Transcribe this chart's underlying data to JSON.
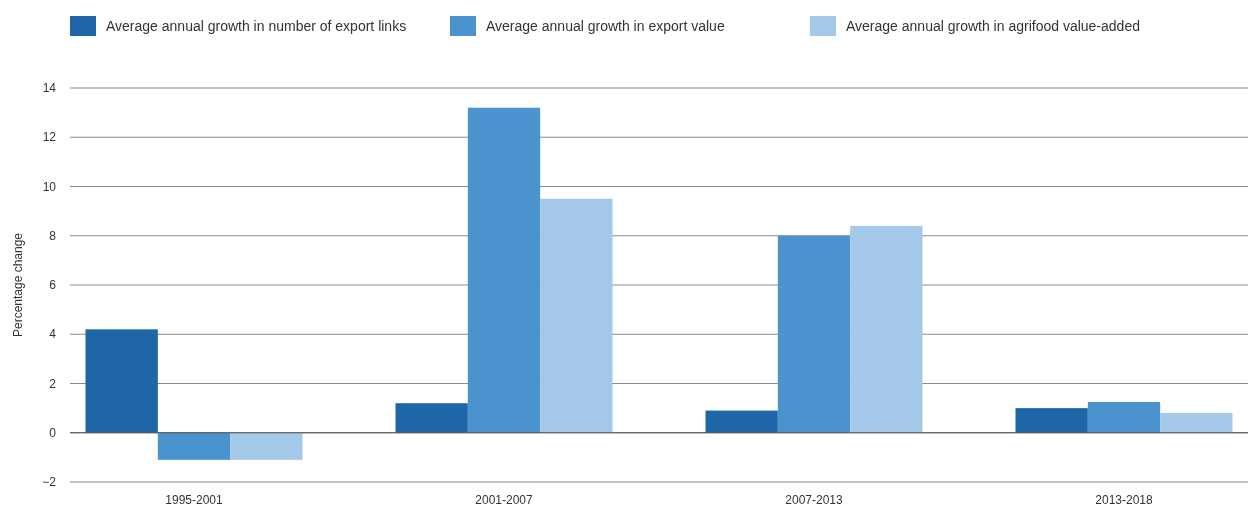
{
  "chart_data": {
    "type": "bar",
    "ylabel": "Percentage change",
    "categories": [
      "1995-2001",
      "2001-2007",
      "2007-2013",
      "2013-2018"
    ],
    "series": [
      {
        "name": "Average annual growth in number of export links",
        "color": "#1f66a8",
        "values": [
          4.2,
          1.2,
          0.9,
          1.0
        ]
      },
      {
        "name": "Average annual growth in export value",
        "color": "#4a93cf",
        "values": [
          -1.1,
          13.2,
          8.0,
          1.25
        ]
      },
      {
        "name": "Average annual growth in agrifood value-added",
        "color": "#a3c8e8",
        "values": [
          -1.1,
          9.5,
          8.4,
          0.8
        ]
      }
    ],
    "ylim": [
      -2,
      14
    ],
    "yticks": [
      {
        "value": -2,
        "label": "−2"
      },
      0,
      2,
      4,
      6,
      8,
      10,
      12,
      14
    ],
    "grid": "y",
    "legend": "top left"
  }
}
